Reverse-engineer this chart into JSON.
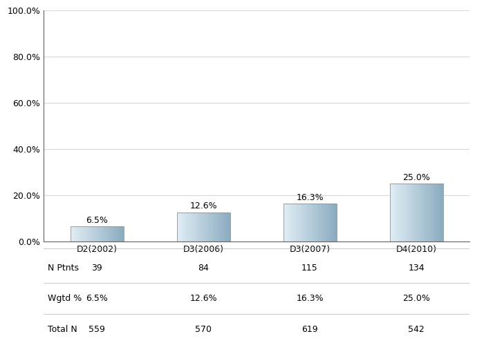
{
  "categories": [
    "D2(2002)",
    "D3(2006)",
    "D3(2007)",
    "D4(2010)"
  ],
  "values": [
    6.5,
    12.6,
    16.3,
    25.0
  ],
  "labels": [
    "6.5%",
    "12.6%",
    "16.3%",
    "25.0%"
  ],
  "n_ptnts": [
    "39",
    "84",
    "115",
    "134"
  ],
  "wgtd_pct": [
    "6.5%",
    "12.6%",
    "16.3%",
    "25.0%"
  ],
  "total_n": [
    "559",
    "570",
    "619",
    "542"
  ],
  "ylim": [
    0,
    100
  ],
  "yticks": [
    0,
    20,
    40,
    60,
    80,
    100
  ],
  "ytick_labels": [
    "0.0%",
    "20.0%",
    "40.0%",
    "60.0%",
    "80.0%",
    "100.0%"
  ],
  "row_labels": [
    "N Ptnts",
    "Wgtd %",
    "Total N"
  ],
  "background_color": "#ffffff",
  "plot_bg_color": "#ffffff",
  "grid_color": "#d8d8d8",
  "bar_left_color": "#dce8f0",
  "bar_right_color": "#8aa8bc",
  "bar_edge_color": "#909090",
  "font_size": 9,
  "label_font_size": 9
}
